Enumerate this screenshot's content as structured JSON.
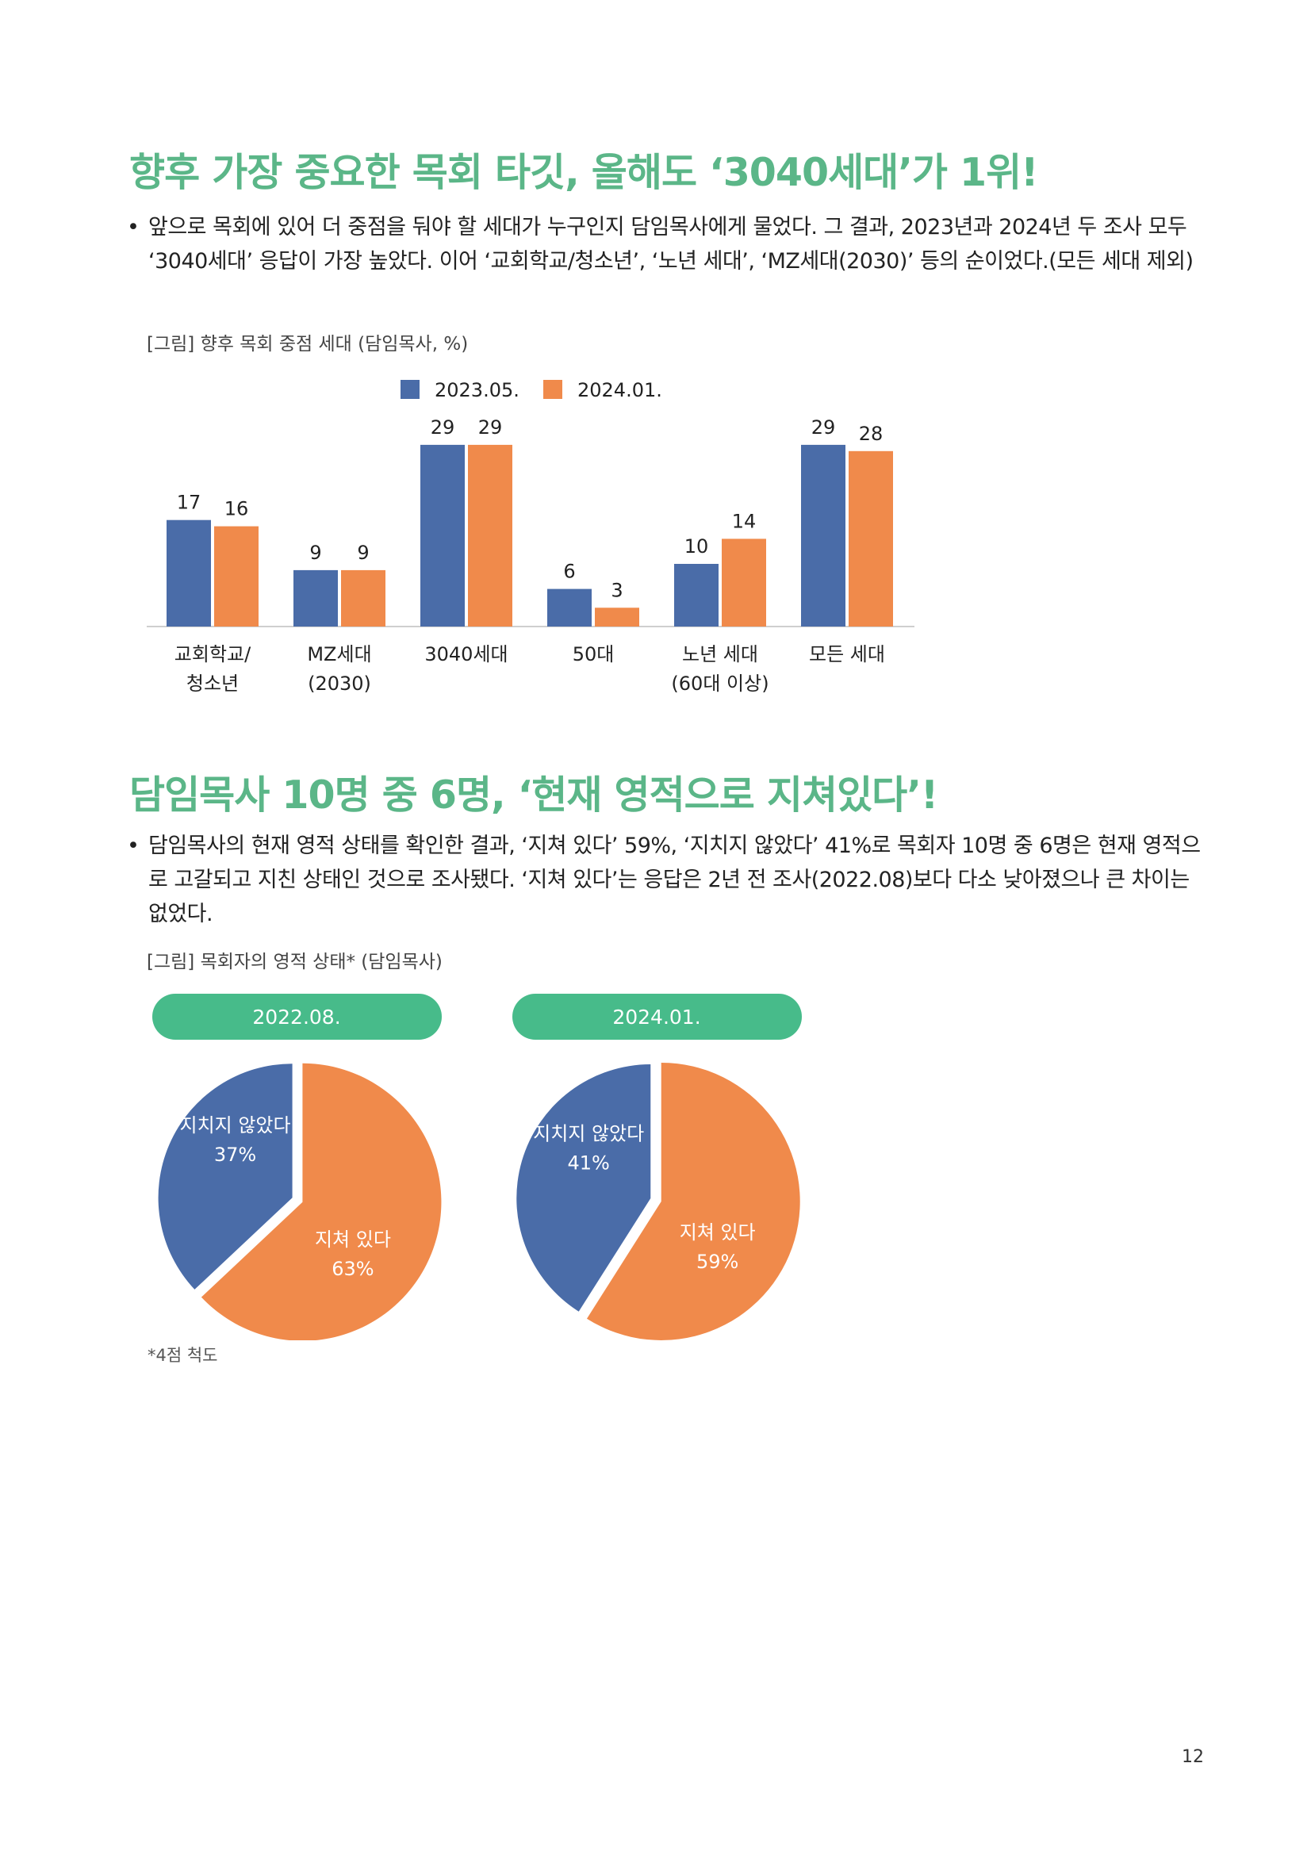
{
  "section1": {
    "heading": "향후 가장 중요한 목회 타깃, 올해도 ‘3040세대’가 1위!",
    "bullet": "•",
    "body": "앞으로 목회에 있어 더 중점을 둬야 할 세대가 누구인지 담임목사에게 물었다. 그 결과, 2023년과 2024년 두 조사 모두 ‘3040세대’ 응답이 가장 높았다. 이어 ‘교회학교/청소년’, ‘노년 세대’, ‘MZ세대(2030)’ 등의 순이었다.(모든 세대 제외)",
    "caption": "[그림] 향후 목회 중점 세대 (담임목사, %)"
  },
  "chart_data": [
    {
      "type": "bar",
      "categories": [
        [
          "교회학교/",
          "청소년"
        ],
        [
          "MZ세대",
          "(2030)"
        ],
        [
          "3040세대"
        ],
        [
          "50대"
        ],
        [
          "노년 세대",
          "(60대 이상)"
        ],
        [
          "모든 세대"
        ]
      ],
      "series": [
        {
          "name": "2023.05.",
          "color": "#4a6ca8",
          "values": [
            17,
            9,
            29,
            6,
            10,
            29
          ]
        },
        {
          "name": "2024.01.",
          "color": "#f08a4b",
          "values": [
            16,
            9,
            29,
            3,
            14,
            28
          ]
        }
      ],
      "legend_position": "top",
      "grid": false
    },
    {
      "type": "pie",
      "header": "2022.08.",
      "slices": [
        {
          "label": "지치지 않았다",
          "value": 37,
          "value_text": "37%",
          "color": "#4a6ca8"
        },
        {
          "label": "지쳐 있다",
          "value": 63,
          "value_text": "63%",
          "color": "#f08a4b"
        }
      ]
    },
    {
      "type": "pie",
      "header": "2024.01.",
      "slices": [
        {
          "label": "지치지 않았다",
          "value": 41,
          "value_text": "41%",
          "color": "#4a6ca8"
        },
        {
          "label": "지쳐 있다",
          "value": 59,
          "value_text": "59%",
          "color": "#f08a4b"
        }
      ]
    }
  ],
  "section2": {
    "heading": "담임목사 10명 중 6명, ‘현재 영적으로 지쳐있다’!",
    "bullet": "•",
    "body": "담임목사의 현재 영적 상태를 확인한 결과, ‘지쳐 있다’ 59%, ‘지치지 않았다’ 41%로 목회자 10명 중 6명은 현재 영적으로 고갈되고 지친 상태인 것으로 조사됐다. ‘지쳐 있다’는 응답은 2년 전 조사(2022.08)보다 다소 낮아졌으나 큰 차이는 없었다.",
    "caption": "[그림] 목회자의 영적 상태* (담임목사)",
    "note": "*4점 척도"
  },
  "colors": {
    "heading": "#5bb688",
    "pill": "#47bb8a",
    "blue": "#4a6ca8",
    "orange": "#f08a4b"
  },
  "page_number": "12"
}
